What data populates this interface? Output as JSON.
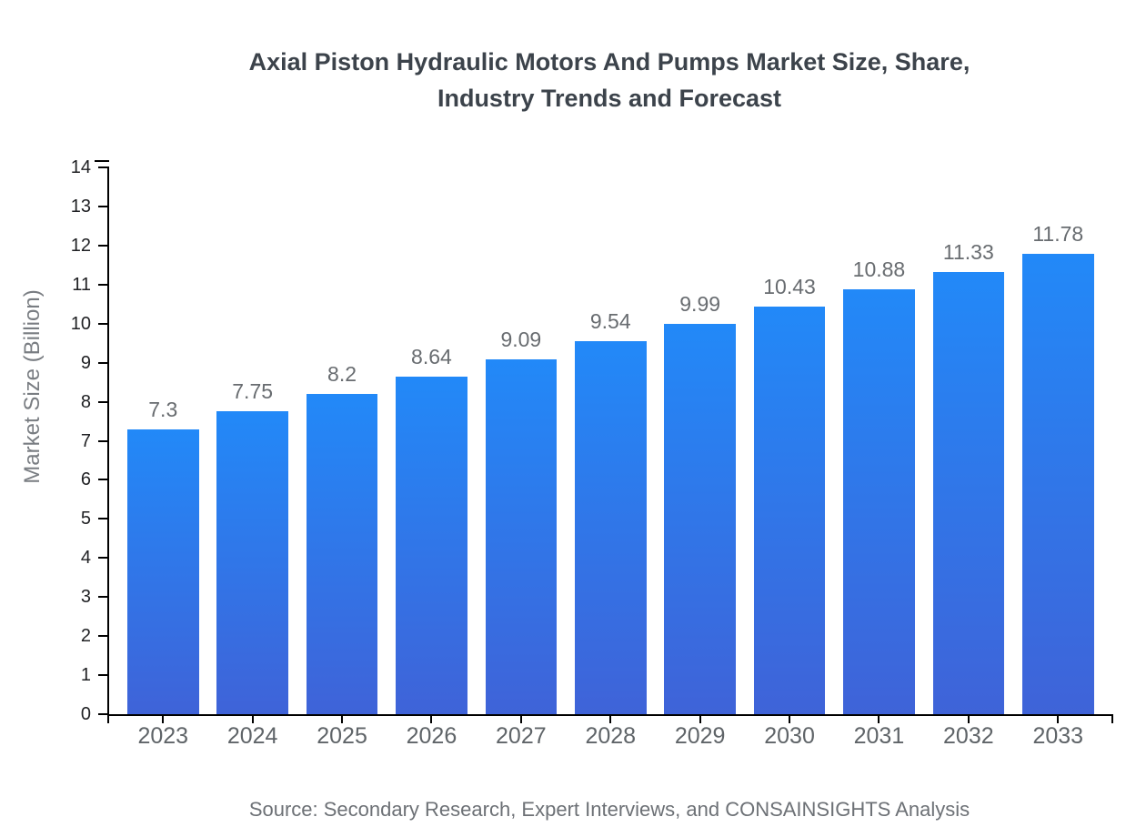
{
  "chart_data": {
    "type": "bar",
    "title": "Axial Piston Hydraulic Motors And Pumps Market Size, Share,\nIndustry Trends and Forecast",
    "ylabel": "Market Size (Billion)",
    "categories": [
      "2023",
      "2024",
      "2025",
      "2026",
      "2027",
      "2028",
      "2029",
      "2030",
      "2031",
      "2032",
      "2033"
    ],
    "values": [
      7.3,
      7.75,
      8.2,
      8.64,
      9.09,
      9.54,
      9.99,
      10.43,
      10.88,
      11.33,
      11.78
    ],
    "value_labels": [
      "7.3",
      "7.75",
      "8.2",
      "8.64",
      "9.09",
      "9.54",
      "9.99",
      "10.43",
      "10.88",
      "11.33",
      "11.78"
    ],
    "ylim": [
      0,
      14
    ],
    "yticks": [
      0,
      1,
      2,
      3,
      4,
      5,
      6,
      7,
      8,
      9,
      10,
      11,
      12,
      13,
      14
    ],
    "grid": false,
    "legend_position": "none",
    "bar_color_top": "#2289f8",
    "bar_color_bottom": "#3f63d8",
    "axis_color": "#000000",
    "source": "Source: Secondary Research, Expert Interviews, and CONSAINSIGHTS Analysis"
  }
}
